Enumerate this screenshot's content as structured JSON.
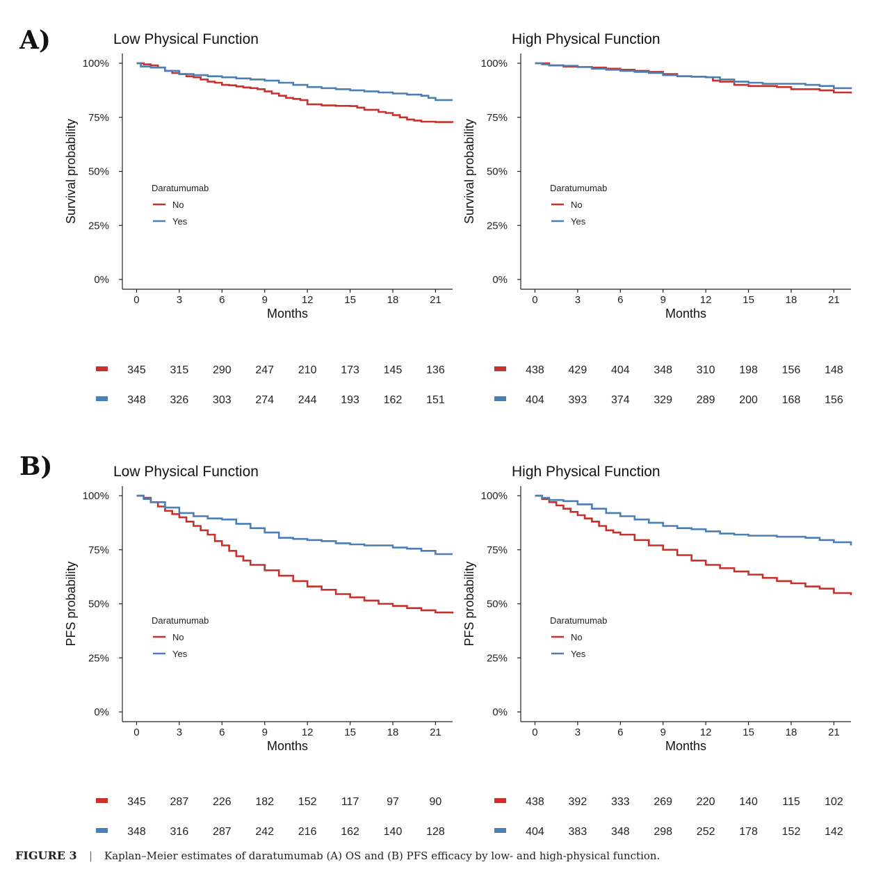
{
  "figure": {
    "label_a": "A)",
    "label_b": "B)",
    "caption_label": "FIGURE 3",
    "caption_separator": "|",
    "caption_text": "Kaplan–Meier estimates of daratumumab (A) OS and (B) PFS efficacy by low- and high-physical function."
  },
  "legend_title": "Daratumumab",
  "colors": {
    "No": "#c7302b",
    "Yes": "#4a7eb5"
  },
  "chart_data": [
    {
      "type": "line",
      "title": "Low Physical Function",
      "xlabel": "Months",
      "ylabel": "Survival probability",
      "x_ticks": [
        0,
        3,
        6,
        9,
        12,
        15,
        18,
        21
      ],
      "y_ticks": [
        "0%",
        "25%",
        "50%",
        "75%",
        "100%"
      ],
      "xlim": [
        -1,
        22.2
      ],
      "ylim": [
        0,
        100
      ],
      "legend": [
        "No",
        "Yes"
      ],
      "series": [
        {
          "name": "No",
          "x": [
            0,
            0.5,
            1,
            1.5,
            2,
            2.5,
            3,
            3.5,
            4,
            4.5,
            5,
            5.5,
            6,
            6.5,
            7,
            7.5,
            8,
            8.5,
            9,
            9.5,
            10,
            10.5,
            11,
            11.5,
            12,
            13,
            14,
            15,
            15.5,
            16,
            17,
            17.5,
            18,
            18.5,
            19,
            19.5,
            20,
            21,
            22.2
          ],
          "y": [
            100,
            99.5,
            99,
            98,
            96.5,
            95.5,
            95,
            94,
            93.5,
            92.5,
            91.5,
            91,
            90,
            89.8,
            89.3,
            88.8,
            88.5,
            88,
            87,
            86,
            85,
            84,
            83.5,
            83,
            81,
            80.5,
            80.3,
            80.2,
            79.5,
            78.5,
            77.5,
            77,
            76,
            75,
            74,
            73.5,
            73,
            72.8,
            72.5
          ]
        },
        {
          "name": "Yes",
          "x": [
            0,
            0.3,
            1,
            2,
            3,
            4,
            5,
            6,
            7,
            8,
            9,
            10,
            11,
            12,
            13,
            14,
            15,
            16,
            17,
            18,
            19,
            20,
            20.5,
            21,
            22.2
          ],
          "y": [
            100,
            98.5,
            98,
            96.5,
            95,
            94.5,
            94,
            93.5,
            93,
            92.5,
            92,
            91,
            90,
            89,
            88.5,
            88,
            87.5,
            87,
            86.5,
            86,
            85.5,
            85,
            84,
            83,
            83
          ]
        }
      ],
      "risk_table": {
        "No": [
          345,
          315,
          290,
          247,
          210,
          173,
          145,
          136
        ],
        "Yes": [
          348,
          326,
          303,
          274,
          244,
          193,
          162,
          151
        ]
      }
    },
    {
      "type": "line",
      "title": "High Physical Function",
      "xlabel": "Months",
      "ylabel": "Survival probability",
      "x_ticks": [
        0,
        3,
        6,
        9,
        12,
        15,
        18,
        21
      ],
      "y_ticks": [
        "0%",
        "25%",
        "50%",
        "75%",
        "100%"
      ],
      "xlim": [
        -1,
        22.2
      ],
      "ylim": [
        0,
        100
      ],
      "legend": [
        "No",
        "Yes"
      ],
      "series": [
        {
          "name": "No",
          "x": [
            0,
            1,
            2,
            3,
            4,
            5,
            6,
            7,
            8,
            9,
            10,
            11,
            12,
            12.5,
            13,
            14,
            15,
            16,
            17,
            18,
            19,
            20,
            21,
            22.2
          ],
          "y": [
            100,
            99,
            98.5,
            98.3,
            98,
            97.5,
            97,
            96.5,
            96,
            95,
            94,
            93.8,
            93.5,
            92,
            91.5,
            90,
            89.5,
            89.5,
            89,
            88,
            88,
            87.5,
            86.5,
            86
          ]
        },
        {
          "name": "Yes",
          "x": [
            0,
            0.5,
            1,
            2,
            3,
            4,
            5,
            6,
            7,
            8,
            9,
            10,
            11,
            12,
            13,
            14,
            15,
            16,
            17,
            18,
            19,
            20,
            21,
            22.2
          ],
          "y": [
            100,
            99.5,
            99,
            98.8,
            98.3,
            97.5,
            97,
            96.5,
            96,
            95.5,
            94.5,
            94,
            93.8,
            93.5,
            92.5,
            91.5,
            91,
            90.5,
            90.5,
            90.5,
            90,
            89.5,
            88.5,
            88
          ]
        }
      ],
      "risk_table": {
        "No": [
          438,
          429,
          404,
          348,
          310,
          198,
          156,
          148
        ],
        "Yes": [
          404,
          393,
          374,
          329,
          289,
          200,
          168,
          156
        ]
      }
    },
    {
      "type": "line",
      "title": "Low Physical Function",
      "xlabel": "Months",
      "ylabel": "PFS probability",
      "x_ticks": [
        0,
        3,
        6,
        9,
        12,
        15,
        18,
        21
      ],
      "y_ticks": [
        "0%",
        "25%",
        "50%",
        "75%",
        "100%"
      ],
      "xlim": [
        -1,
        22.2
      ],
      "ylim": [
        0,
        100
      ],
      "legend": [
        "No",
        "Yes"
      ],
      "series": [
        {
          "name": "No",
          "x": [
            0,
            0.5,
            1,
            1.5,
            2,
            2.5,
            3,
            3.5,
            4,
            4.5,
            5,
            5.5,
            6,
            6.5,
            7,
            7.5,
            8,
            9,
            10,
            11,
            12,
            13,
            14,
            15,
            16,
            17,
            18,
            19,
            20,
            21,
            22.2
          ],
          "y": [
            100,
            99,
            97,
            95,
            93,
            91.5,
            90,
            88,
            86,
            84,
            82,
            79,
            77,
            74.5,
            72,
            70,
            68,
            65.5,
            63,
            60.5,
            58,
            56.5,
            54.5,
            53,
            51.5,
            50,
            49,
            48,
            47,
            46,
            45.5
          ]
        },
        {
          "name": "Yes",
          "x": [
            0,
            0.5,
            1,
            2,
            3,
            4,
            5,
            6,
            7,
            8,
            9,
            10,
            11,
            12,
            13,
            14,
            15,
            16,
            17,
            18,
            19,
            20,
            21,
            22.2
          ],
          "y": [
            100,
            98.5,
            97,
            94.5,
            92,
            90.5,
            89.5,
            89,
            87,
            85,
            83,
            80.5,
            80,
            79.5,
            79,
            78,
            77.5,
            77,
            77,
            76,
            75.5,
            74.5,
            73,
            73
          ]
        }
      ],
      "risk_table": {
        "No": [
          345,
          287,
          226,
          182,
          152,
          117,
          97,
          90
        ],
        "Yes": [
          348,
          316,
          287,
          242,
          216,
          162,
          140,
          128
        ]
      }
    },
    {
      "type": "line",
      "title": "High Physical Function",
      "xlabel": "Months",
      "ylabel": "PFS probability",
      "x_ticks": [
        0,
        3,
        6,
        9,
        12,
        15,
        18,
        21
      ],
      "y_ticks": [
        "0%",
        "25%",
        "50%",
        "75%",
        "100%"
      ],
      "xlim": [
        -1,
        22.2
      ],
      "ylim": [
        0,
        100
      ],
      "legend": [
        "No",
        "Yes"
      ],
      "series": [
        {
          "name": "No",
          "x": [
            0,
            0.5,
            1,
            1.5,
            2,
            2.5,
            3,
            3.5,
            4,
            4.5,
            5,
            5.5,
            6,
            7,
            8,
            9,
            10,
            11,
            12,
            13,
            14,
            15,
            16,
            17,
            18,
            19,
            20,
            21,
            22.2
          ],
          "y": [
            100,
            98.5,
            97,
            95.5,
            94,
            92.5,
            91,
            89.5,
            88,
            86,
            84,
            83,
            82,
            79.5,
            77,
            75,
            72.5,
            70,
            68,
            66.5,
            65,
            63.5,
            62,
            60.5,
            59.5,
            58,
            57,
            55,
            54
          ]
        },
        {
          "name": "Yes",
          "x": [
            0,
            0.5,
            1,
            2,
            3,
            4,
            5,
            6,
            7,
            8,
            9,
            10,
            11,
            12,
            13,
            14,
            15,
            16,
            17,
            18,
            19,
            20,
            21,
            22.2
          ],
          "y": [
            100,
            99,
            98,
            97.5,
            96,
            94,
            92,
            90.5,
            89,
            87.5,
            86,
            85,
            84.5,
            83.5,
            82.5,
            82,
            81.5,
            81.5,
            81,
            81,
            80.5,
            79.5,
            78.5,
            77
          ]
        }
      ],
      "risk_table": {
        "No": [
          438,
          392,
          333,
          269,
          220,
          140,
          115,
          102
        ],
        "Yes": [
          404,
          383,
          348,
          298,
          252,
          178,
          152,
          142
        ]
      }
    }
  ]
}
